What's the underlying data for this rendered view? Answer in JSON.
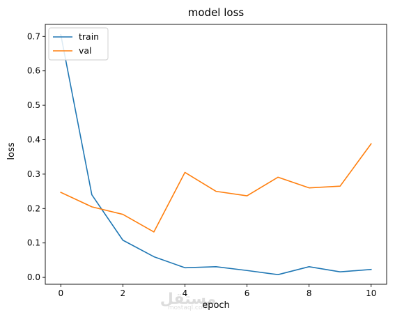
{
  "chart_data": {
    "type": "line",
    "title": "model loss",
    "xlabel": "epoch",
    "ylabel": "loss",
    "x": [
      0,
      1,
      2,
      3,
      4,
      5,
      6,
      7,
      8,
      9,
      10
    ],
    "xlim": [
      -0.5,
      10.5
    ],
    "ylim": [
      -0.02,
      0.735
    ],
    "xticks": [
      0,
      2,
      4,
      6,
      8,
      10
    ],
    "yticks": [
      0.0,
      0.1,
      0.2,
      0.3,
      0.4,
      0.5,
      0.6,
      0.7
    ],
    "ytick_labels": [
      "0.0",
      "0.1",
      "0.2",
      "0.3",
      "0.4",
      "0.5",
      "0.6",
      "0.7"
    ],
    "grid": false,
    "legend_position": "top-left",
    "series": [
      {
        "name": "train",
        "color": "#1f77b4",
        "values": [
          0.705,
          0.24,
          0.108,
          0.06,
          0.028,
          0.031,
          0.02,
          0.008,
          0.031,
          0.016,
          0.023
        ]
      },
      {
        "name": "val",
        "color": "#ff7f0e",
        "values": [
          0.247,
          0.205,
          0.183,
          0.132,
          0.305,
          0.25,
          0.237,
          0.291,
          0.26,
          0.265,
          0.388
        ]
      }
    ]
  },
  "watermark": {
    "text": "مستقل",
    "subtext": "mostaql.com"
  }
}
